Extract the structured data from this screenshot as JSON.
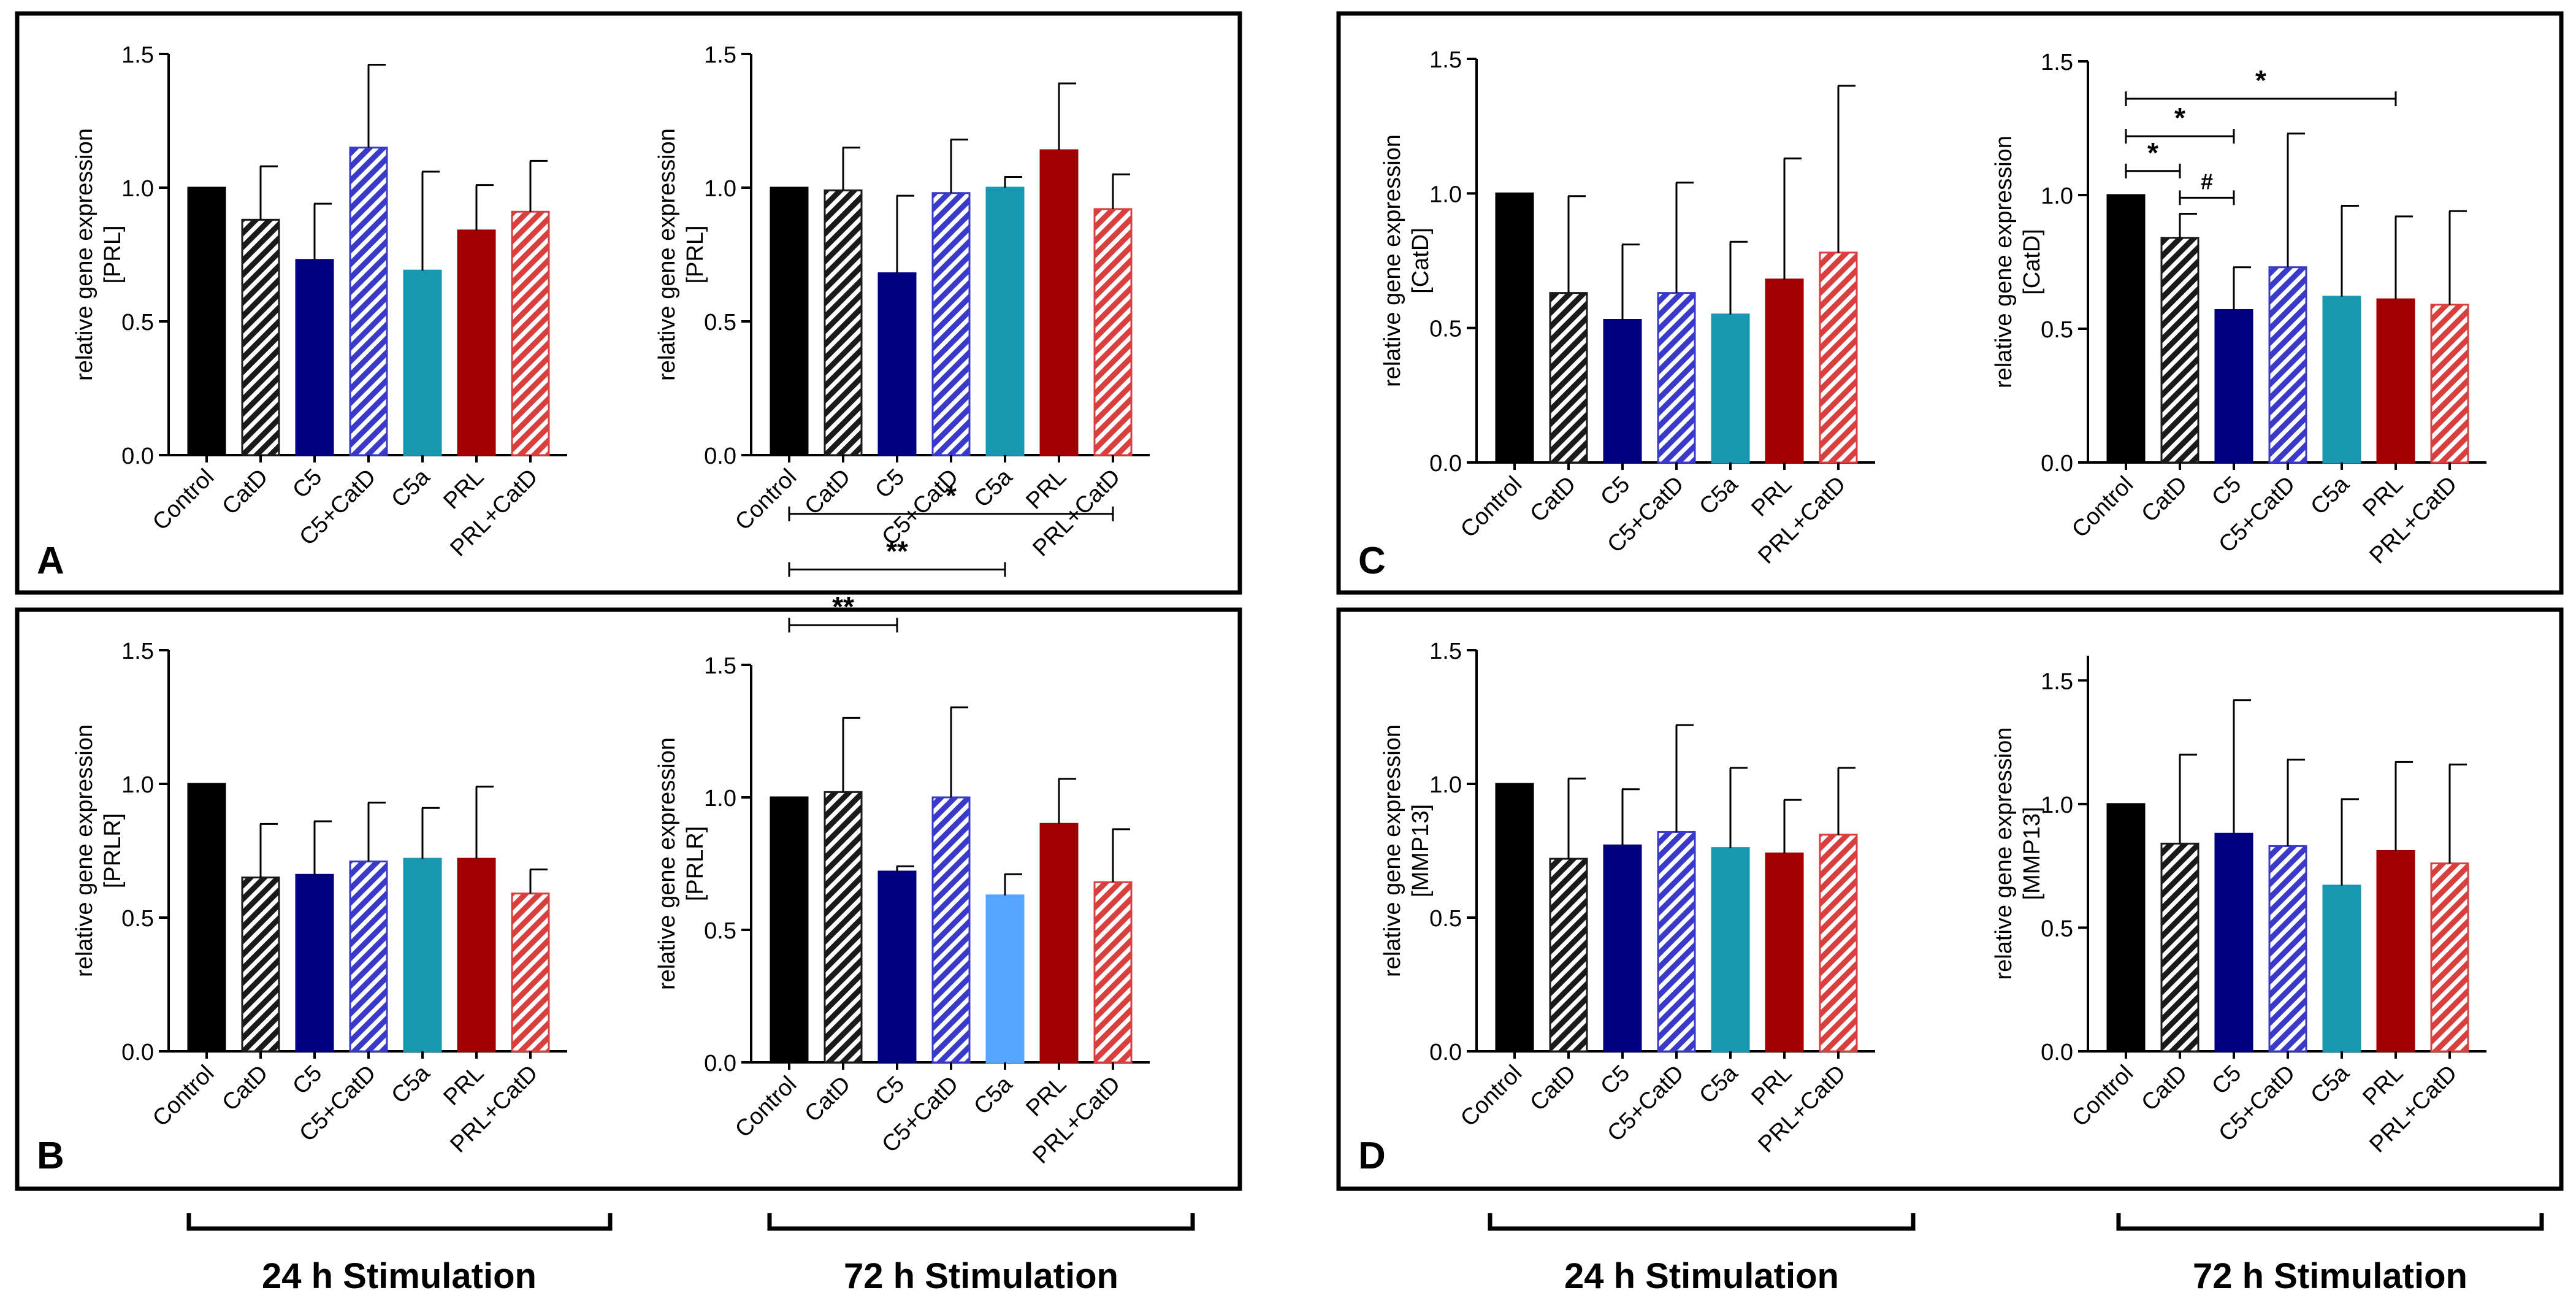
{
  "categories": [
    "Control",
    "CatD",
    "C5",
    "C5+CatD",
    "C5a",
    "PRL",
    "PRL+CatD"
  ],
  "ylabel_prefix": "relative gene expression",
  "colors": {
    "control": "#000000",
    "catd_hatch": "#1a1a1a",
    "c5": "#000080",
    "c5_catd_hatch": "#3a3ac8",
    "c5a": "#1797b0",
    "c5a_light": "#55a6ff",
    "prl": "#a00000",
    "prl_catd_hatch": "#d84040"
  },
  "panels": [
    {
      "letter": "A",
      "gene": "[PRL]"
    },
    {
      "letter": "B",
      "gene": "[PRLR]"
    },
    {
      "letter": "C",
      "gene": "[CatD]"
    },
    {
      "letter": "D",
      "gene": "[MMP13]"
    }
  ],
  "timepoints": [
    "24 h Stimulation",
    "72 h Stimulation",
    "24 h Stimulation",
    "72 h Stimulation"
  ],
  "chart_data": [
    {
      "type": "bar",
      "panel": "A",
      "ylabel": "relative gene expression [PRL]",
      "ylim": [
        0,
        1.5
      ],
      "yticks": [
        "0.0",
        "0.5",
        "1.0",
        "1.5"
      ],
      "categories": [
        "Control",
        "CatD",
        "C5",
        "C5+CatD",
        "C5a",
        "PRL",
        "PRL+CatD"
      ],
      "values": [
        1.0,
        0.88,
        0.73,
        1.15,
        0.69,
        0.84,
        0.91
      ],
      "errors": [
        0.0,
        0.2,
        0.21,
        0.31,
        0.37,
        0.17,
        0.19
      ],
      "significance": []
    },
    {
      "type": "bar",
      "panel": "A",
      "ylabel": "relative gene expression [PRL]",
      "ylim": [
        0,
        1.5
      ],
      "yticks": [
        "0.0",
        "0.5",
        "1.0",
        "1.5"
      ],
      "categories": [
        "Control",
        "CatD",
        "C5",
        "C5+CatD",
        "C5a",
        "PRL",
        "PRL+CatD"
      ],
      "values": [
        1.0,
        0.99,
        0.68,
        0.98,
        1.0,
        1.14,
        0.92
      ],
      "errors": [
        0.0,
        0.16,
        0.29,
        0.2,
        0.04,
        0.25,
        0.13
      ],
      "significance": []
    },
    {
      "type": "bar",
      "panel": "B",
      "ylabel": "relative gene expression [PRLR]",
      "ylim": [
        0,
        1.5
      ],
      "yticks": [
        "0.0",
        "0.5",
        "1.0",
        "1.5"
      ],
      "categories": [
        "Control",
        "CatD",
        "C5",
        "C5+CatD",
        "C5a",
        "PRL",
        "PRL+CatD"
      ],
      "values": [
        1.0,
        0.65,
        0.66,
        0.71,
        0.72,
        0.72,
        0.59
      ],
      "errors": [
        0.0,
        0.2,
        0.2,
        0.22,
        0.19,
        0.27,
        0.09
      ],
      "significance": []
    },
    {
      "type": "bar",
      "panel": "B",
      "ylabel": "relative gene expression [PRLR]",
      "ylim": [
        0,
        1.5
      ],
      "yticks": [
        "0.0",
        "0.5",
        "1.0",
        "1.5"
      ],
      "categories": [
        "Control",
        "CatD",
        "C5",
        "C5+CatD",
        "C5a",
        "PRL",
        "PRL+CatD"
      ],
      "values": [
        1.0,
        1.02,
        0.72,
        1.0,
        0.63,
        0.9,
        0.68
      ],
      "errors": [
        0.0,
        0.28,
        0.02,
        0.34,
        0.08,
        0.17,
        0.2
      ],
      "significance": [
        {
          "from": 0,
          "to": 2,
          "label": "**",
          "level": 1.65
        },
        {
          "from": 0,
          "to": 4,
          "label": "**",
          "level": 1.86
        },
        {
          "from": 0,
          "to": 6,
          "label": "*",
          "level": 2.07
        }
      ]
    },
    {
      "type": "bar",
      "panel": "C",
      "ylabel": "relative gene expression [CatD]",
      "ylim": [
        0,
        1.5
      ],
      "yticks": [
        "0.0",
        "0.5",
        "1.0",
        "1.5"
      ],
      "categories": [
        "Control",
        "CatD",
        "C5",
        "C5+CatD",
        "C5a",
        "PRL",
        "PRL+CatD"
      ],
      "values": [
        1.0,
        0.63,
        0.53,
        0.63,
        0.55,
        0.68,
        0.78
      ],
      "errors": [
        0.0,
        0.36,
        0.28,
        0.41,
        0.27,
        0.45,
        0.62
      ],
      "significance": []
    },
    {
      "type": "bar",
      "panel": "C",
      "ylabel": "relative gene expression [CatD]",
      "ylim": [
        0,
        1.5
      ],
      "yticks": [
        "0.0",
        "0.5",
        "1.0",
        "1.5"
      ],
      "categories": [
        "Control",
        "CatD",
        "C5",
        "C5+CatD",
        "C5a",
        "PRL",
        "PRL+CatD"
      ],
      "values": [
        1.0,
        0.84,
        0.57,
        0.73,
        0.62,
        0.61,
        0.59
      ],
      "errors": [
        0.0,
        0.09,
        0.16,
        0.5,
        0.34,
        0.31,
        0.35
      ],
      "significance": [
        {
          "from": 0,
          "to": 1,
          "label": "*",
          "level": 1.09
        },
        {
          "from": 1,
          "to": 2,
          "label": "#",
          "level": 0.99
        },
        {
          "from": 0,
          "to": 2,
          "label": "*",
          "level": 1.22
        },
        {
          "from": 0,
          "to": 5,
          "label": "*",
          "level": 1.36
        }
      ]
    },
    {
      "type": "bar",
      "panel": "D",
      "ylabel": "relative gene expression [MMP13]",
      "ylim": [
        0,
        1.5
      ],
      "yticks": [
        "0.0",
        "0.5",
        "1.0",
        "1.5"
      ],
      "categories": [
        "Control",
        "CatD",
        "C5",
        "C5+CatD",
        "C5a",
        "PRL",
        "PRL+CatD"
      ],
      "values": [
        1.0,
        0.72,
        0.77,
        0.82,
        0.76,
        0.74,
        0.81
      ],
      "errors": [
        0.0,
        0.3,
        0.21,
        0.4,
        0.3,
        0.2,
        0.25
      ],
      "significance": []
    },
    {
      "type": "bar",
      "panel": "D",
      "ylabel": "relative gene expression [MMP13]",
      "ylim": [
        0,
        1.6
      ],
      "yticks": [
        "0.0",
        "0.5",
        "1.0",
        "1.5"
      ],
      "categories": [
        "Control",
        "CatD",
        "C5",
        "C5+CatD",
        "C5a",
        "PRL",
        "PRL+CatD"
      ],
      "values": [
        1.0,
        0.84,
        0.88,
        0.83,
        0.67,
        0.81,
        0.76
      ],
      "errors": [
        0.0,
        0.36,
        0.54,
        0.35,
        0.35,
        0.36,
        0.4
      ],
      "significance": []
    }
  ]
}
